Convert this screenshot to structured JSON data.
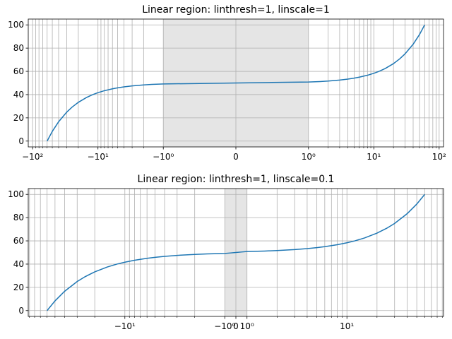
{
  "chart_data": [
    {
      "type": "line",
      "title": "Linear region: linthresh=1, linscale=1",
      "xscale": "symlog",
      "linthresh": 1,
      "linscale": 1,
      "x": [
        -60,
        -50,
        -40,
        -30,
        -25,
        -20,
        -15,
        -12,
        -10,
        -8,
        -6,
        -5,
        -4,
        -3,
        -2,
        -1.5,
        -1,
        -0.5,
        0,
        0.5,
        1,
        1.5,
        2,
        3,
        4,
        5,
        6,
        8,
        10,
        12,
        15,
        20,
        25,
        30,
        40,
        50,
        60
      ],
      "series": [
        {
          "color": "#1f77b4",
          "values": [
            0,
            8.333,
            16.667,
            25,
            29.167,
            33.333,
            37.5,
            40,
            41.667,
            43.333,
            45,
            45.833,
            46.667,
            47.5,
            48.333,
            48.75,
            49.167,
            49.583,
            50,
            50.417,
            50.833,
            51.25,
            51.667,
            52.5,
            53.333,
            54.167,
            55,
            56.667,
            58.333,
            60,
            62.5,
            66.667,
            70.833,
            75,
            83.333,
            91.667,
            100
          ]
        }
      ],
      "shaded_region": [
        -1,
        1
      ],
      "shaded_color": "#e5e5e5",
      "xlim": [
        -116.7,
        116.7
      ],
      "ylim": [
        -5,
        105
      ],
      "xticks": [
        {
          "value": -100,
          "label": "−10²"
        },
        {
          "value": -10,
          "label": "−10¹"
        },
        {
          "value": -1,
          "label": "−10⁰"
        },
        0,
        {
          "value": 1,
          "label": "10⁰"
        },
        {
          "value": 10,
          "label": "10¹"
        },
        {
          "value": 100,
          "label": "10²"
        }
      ],
      "xminorticks": [
        -90,
        -80,
        -70,
        -60,
        -50,
        -40,
        -30,
        -20,
        -9,
        -8,
        -7,
        -6,
        -5,
        -4,
        -3,
        -2,
        2,
        3,
        4,
        5,
        6,
        7,
        8,
        9,
        20,
        30,
        40,
        50,
        60,
        70,
        80,
        90
      ],
      "yticks": [
        0,
        20,
        40,
        60,
        80,
        100
      ],
      "grid": true
    },
    {
      "type": "line",
      "title": "Linear region: linthresh=1, linscale=0.1",
      "xscale": "symlog",
      "linthresh": 1,
      "linscale": 0.1,
      "x": [
        -60,
        -50,
        -40,
        -30,
        -25,
        -20,
        -15,
        -12,
        -10,
        -8,
        -6,
        -5,
        -4,
        -3,
        -2,
        -1.5,
        -1,
        -0.5,
        0,
        0.5,
        1,
        1.5,
        2,
        3,
        4,
        5,
        6,
        8,
        10,
        12,
        15,
        20,
        25,
        30,
        40,
        50,
        60
      ],
      "series": [
        {
          "color": "#1f77b4",
          "values": [
            0,
            8.333,
            16.667,
            25,
            29.167,
            33.333,
            37.5,
            40,
            41.667,
            43.333,
            45,
            45.833,
            46.667,
            47.5,
            48.333,
            48.75,
            49.167,
            49.583,
            50,
            50.417,
            50.833,
            51.25,
            51.667,
            52.5,
            53.333,
            54.167,
            55,
            56.667,
            58.333,
            60,
            62.5,
            66.667,
            70.833,
            75,
            83.333,
            91.667,
            100
          ]
        }
      ],
      "shaded_region": [
        -1,
        1
      ],
      "shaded_color": "#e5e5e5",
      "xlim": [
        -92.6,
        92.6
      ],
      "ylim": [
        -5,
        105
      ],
      "xticks": [
        {
          "value": -10,
          "label": "−10¹"
        },
        {
          "value": -1,
          "label": "−10⁰"
        },
        0,
        {
          "value": 1,
          "label": "10⁰"
        },
        {
          "value": 10,
          "label": "10¹"
        }
      ],
      "xminorticks": [
        -90,
        -80,
        -70,
        -60,
        -50,
        -40,
        -30,
        -20,
        -9,
        -8,
        -7,
        -6,
        -5,
        -4,
        -3,
        -2,
        2,
        3,
        4,
        5,
        6,
        7,
        8,
        9,
        20,
        30,
        40,
        50,
        60,
        70,
        80,
        90
      ],
      "yticks": [
        0,
        20,
        40,
        60,
        80,
        100
      ],
      "grid": true
    }
  ]
}
